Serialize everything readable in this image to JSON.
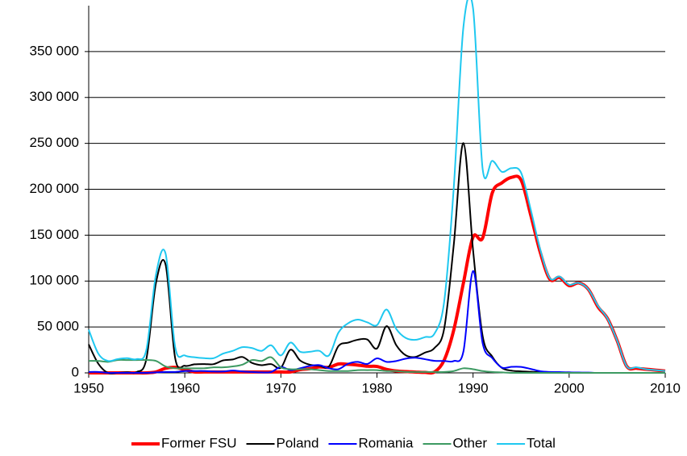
{
  "chart_data": {
    "type": "line",
    "x": [
      1950,
      1951,
      1952,
      1953,
      1954,
      1955,
      1956,
      1957,
      1958,
      1959,
      1960,
      1961,
      1962,
      1963,
      1964,
      1965,
      1966,
      1967,
      1968,
      1969,
      1970,
      1971,
      1972,
      1973,
      1974,
      1975,
      1976,
      1977,
      1978,
      1979,
      1980,
      1981,
      1982,
      1983,
      1984,
      1985,
      1986,
      1987,
      1988,
      1989,
      1990,
      1991,
      1992,
      1993,
      1994,
      1995,
      1996,
      1997,
      1998,
      1999,
      2000,
      2001,
      2002,
      2003,
      2004,
      2005,
      2006,
      2007,
      2008,
      2009,
      2010
    ],
    "series": [
      {
        "name": "Former FSU",
        "color": "#ff0000",
        "width": 4,
        "values": [
          0,
          0,
          0,
          0,
          0,
          0,
          0,
          1000,
          5000,
          6000,
          3500,
          1000,
          1000,
          1000,
          1000,
          1000,
          1000,
          1000,
          1000,
          1000,
          1000,
          1000,
          3500,
          4500,
          6500,
          6000,
          9700,
          9300,
          8500,
          7200,
          7000,
          3800,
          2100,
          1400,
          900,
          500,
          1000,
          14000,
          47000,
          98000,
          148000,
          147000,
          196000,
          207000,
          213000,
          210000,
          172000,
          131000,
          102000,
          104000,
          95000,
          98000,
          91000,
          72000,
          59000,
          35000,
          7000,
          5000,
          4000,
          3000,
          2000
        ]
      },
      {
        "name": "Poland",
        "color": "#000000",
        "width": 2,
        "values": [
          31000,
          10000,
          0,
          0,
          700,
          900,
          15000,
          98000,
          118000,
          16000,
          7700,
          9300,
          9600,
          9500,
          13600,
          14600,
          17300,
          10800,
          8400,
          9500,
          5600,
          25200,
          13500,
          8900,
          7800,
          7000,
          29300,
          32900,
          36100,
          36300,
          26600,
          50900,
          30300,
          19100,
          17400,
          22100,
          27200,
          48400,
          140200,
          250300,
          133900,
          40100,
          17700,
          5400,
          2400,
          1700,
          1200,
          700,
          500,
          400,
          500,
          0,
          0,
          0,
          0,
          0,
          0,
          0,
          0,
          0,
          0
        ]
      },
      {
        "name": "Romania",
        "color": "#0000ff",
        "width": 2,
        "values": [
          1000,
          1000,
          0,
          0,
          0,
          0,
          0,
          500,
          1000,
          1000,
          2000,
          2000,
          2000,
          1500,
          1500,
          2500,
          1500,
          1000,
          500,
          1000,
          6500,
          3000,
          5000,
          7500,
          8500,
          5000,
          4000,
          10000,
          12000,
          9700,
          15800,
          12000,
          12900,
          15500,
          16500,
          14900,
          13100,
          13000,
          12900,
          23400,
          111000,
          32200,
          16100,
          5800,
          6600,
          6500,
          4300,
          1800,
          1000,
          900,
          500,
          400,
          300,
          0,
          0,
          0,
          0,
          0,
          0,
          0,
          0
        ]
      },
      {
        "name": "Other",
        "color": "#3d9a62",
        "width": 2,
        "values": [
          13000,
          13000,
          12000,
          14000,
          14000,
          14000,
          14000,
          13000,
          7000,
          5000,
          5000,
          5000,
          5000,
          6000,
          6000,
          7000,
          9000,
          14000,
          13000,
          17000,
          6000,
          4000,
          4000,
          4000,
          3000,
          2000,
          2000,
          2000,
          3000,
          3000,
          3000,
          2000,
          2000,
          1000,
          1000,
          1000,
          1000,
          1000,
          2000,
          5000,
          4000,
          2000,
          1000,
          500,
          0,
          0,
          0,
          0,
          0,
          0,
          0,
          0,
          0,
          0,
          0,
          0,
          0,
          0,
          0,
          0,
          0
        ]
      },
      {
        "name": "Total",
        "color": "#1fc8f0",
        "width": 2,
        "values": [
          47000,
          21000,
          13000,
          15000,
          16000,
          15000,
          25000,
          107000,
          130000,
          28000,
          19000,
          17000,
          16000,
          16000,
          21000,
          24000,
          28000,
          27000,
          24000,
          30000,
          19000,
          33000,
          23000,
          23000,
          24000,
          19000,
          44000,
          54000,
          58000,
          55000,
          52000,
          69000,
          48000,
          38000,
          36000,
          39000,
          43000,
          78000,
          203000,
          377000,
          397000,
          222000,
          231000,
          219000,
          223000,
          218000,
          178000,
          134000,
          103000,
          105000,
          96000,
          98000,
          91000,
          73000,
          59000,
          35000,
          7000,
          6000,
          4000,
          3000,
          2000
        ]
      }
    ],
    "xlim": [
      1950,
      2010
    ],
    "xticks": [
      1950,
      1960,
      1970,
      1980,
      1990,
      2000,
      2010
    ],
    "ylim": [
      0,
      400000
    ],
    "yticks": [
      0,
      {
        "value": 50000,
        "label": "50 000"
      },
      {
        "value": 100000,
        "label": "100 000"
      },
      {
        "value": 150000,
        "label": "150 000"
      },
      {
        "value": 200000,
        "label": "200 000"
      },
      {
        "value": 250000,
        "label": "250 000"
      },
      {
        "value": 300000,
        "label": "300 000"
      },
      {
        "value": 350000,
        "label": "350 000"
      }
    ],
    "grid": true,
    "legend": "bottom"
  }
}
